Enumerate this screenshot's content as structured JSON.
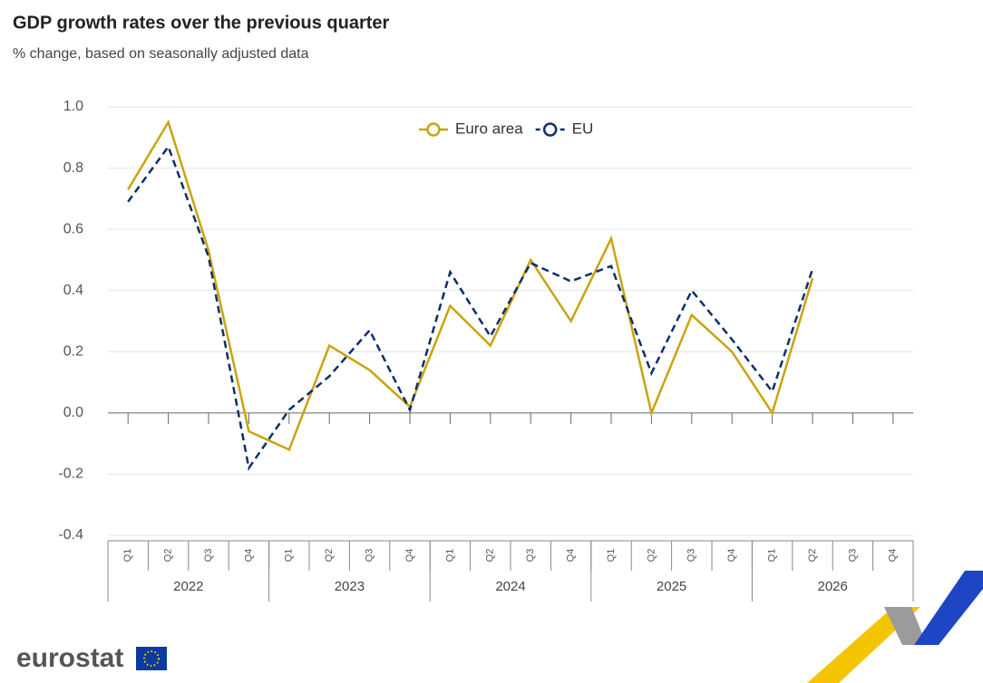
{
  "chart_data": {
    "type": "line",
    "title": "GDP growth rates over the previous quarter",
    "subtitle": "% change, based on seasonally adjusted data",
    "category_groups": [
      {
        "label": "2022",
        "categories": [
          "Q1",
          "Q2",
          "Q3",
          "Q4"
        ]
      },
      {
        "label": "2023",
        "categories": [
          "Q1",
          "Q2",
          "Q3",
          "Q4"
        ]
      },
      {
        "label": "2024",
        "categories": [
          "Q1",
          "Q2",
          "Q3",
          "Q4"
        ]
      },
      {
        "label": "2025",
        "categories": [
          "Q1",
          "Q2",
          "Q3",
          "Q4"
        ]
      },
      {
        "label": "2026",
        "categories": [
          "Q1",
          "Q2",
          "Q3",
          "Q4"
        ]
      }
    ],
    "series": [
      {
        "name": "Euro area",
        "color": "#c9a40f",
        "dash": false,
        "values": [
          0.73,
          0.95,
          0.53,
          -0.06,
          -0.12,
          0.22,
          0.14,
          0.02,
          0.35,
          0.22,
          0.5,
          0.3,
          0.57,
          0.0,
          0.32,
          0.2,
          0.0,
          0.44,
          null,
          null
        ]
      },
      {
        "name": "EU",
        "color": "#0e2f6b",
        "dash": true,
        "values": [
          0.69,
          0.87,
          0.51,
          -0.18,
          0.01,
          0.12,
          0.27,
          0.01,
          0.46,
          0.25,
          0.49,
          0.43,
          0.48,
          0.13,
          0.4,
          0.24,
          0.07,
          0.47,
          null,
          null
        ]
      }
    ],
    "ylim": [
      -0.4,
      1.0
    ],
    "yticks": [
      -0.4,
      -0.2,
      {
        "value": 0,
        "label": "0.0"
      },
      0.2,
      0.4,
      0.6,
      0.8,
      {
        "value": 1,
        "label": "1.0"
      }
    ],
    "grid": true,
    "legend": "top",
    "logo": "eurostat"
  }
}
